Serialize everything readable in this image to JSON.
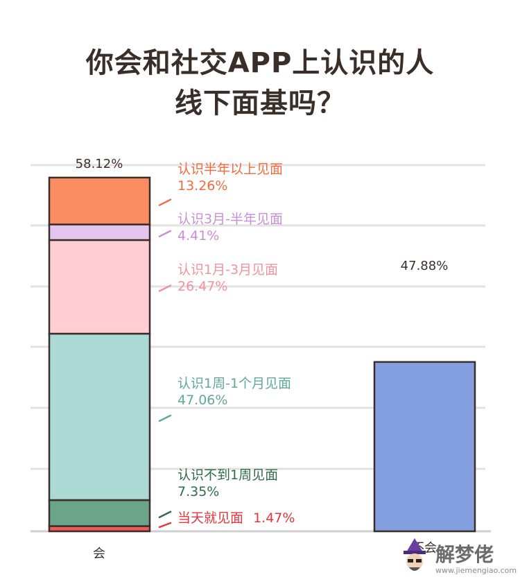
{
  "title_lines": [
    "你会和社交APP上认识的人",
    "线下面基吗？"
  ],
  "chart_data": {
    "type": "bar",
    "stacked": true,
    "categories": [
      "会",
      "不会"
    ],
    "totals": [
      "58.12%",
      "47.88%"
    ],
    "series": [
      {
        "name": "当天就见面",
        "label": "1.47%",
        "value": 1.47,
        "color": "#f25a5a"
      },
      {
        "name": "认识不到1周见面",
        "label": "7.35%",
        "value": 7.35,
        "color": "#6aa58a"
      },
      {
        "name": "认识1周-1个月见面",
        "label": "47.06%",
        "value": 47.06,
        "color": "#acd9d3"
      },
      {
        "name": "认识1月-3月见面",
        "label": "26.47%",
        "value": 26.47,
        "color": "#ffcdd2"
      },
      {
        "name": "认识3月-半年见面",
        "label": "4.41%",
        "value": 4.41,
        "color": "#e5c3ef"
      },
      {
        "name": "认识半年以上见面",
        "label": "13.26%",
        "value": 13.26,
        "color": "#fb8d62"
      }
    ],
    "label_colors": [
      "#e8343a",
      "#2f6b4a",
      "#5fa89b",
      "#f0939b",
      "#c98fd6",
      "#f26b3c"
    ],
    "bar2": {
      "value": 47.88,
      "color": "#849fe0"
    },
    "grid": true
  },
  "watermark": {
    "text": "解梦佬",
    "url": "www.jiemengiao.com"
  }
}
